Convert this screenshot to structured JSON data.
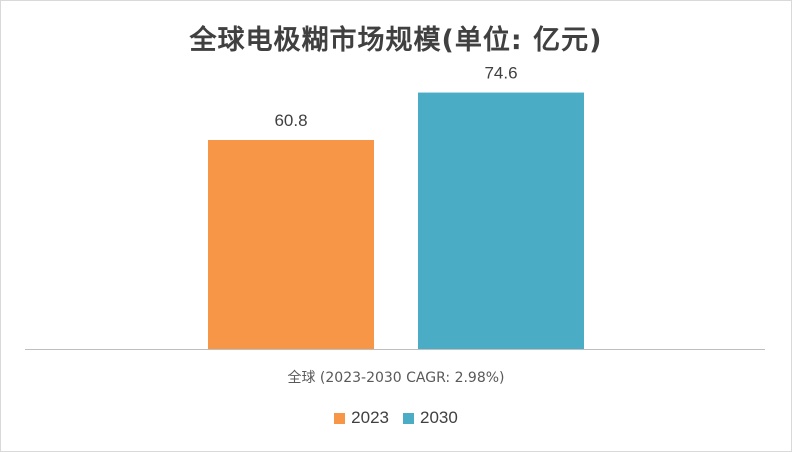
{
  "chart_data": {
    "type": "bar",
    "title": "全球电极糊市场规模(单位: 亿元)",
    "categories": [
      "全球 (2023-2030 CAGR: 2.98%)"
    ],
    "series": [
      {
        "name": "2023",
        "values": [
          60.8
        ],
        "color": "#f79646"
      },
      {
        "name": "2030",
        "values": [
          74.6
        ],
        "color": "#4bacc6"
      }
    ],
    "data_labels": [
      "60.8",
      "74.6"
    ],
    "xlabel": "",
    "ylabel": "",
    "ylim": [
      0,
      80
    ],
    "grid": false,
    "legend": "bottom"
  }
}
